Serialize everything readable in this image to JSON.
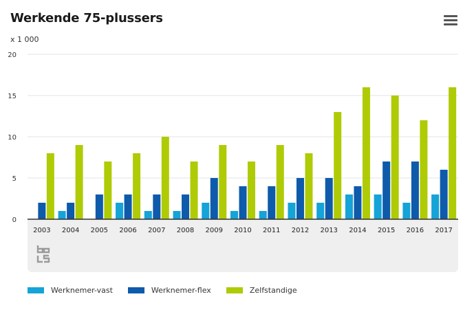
{
  "header": {
    "title": "Werkende 75-plussers",
    "unit_label": "x 1 000",
    "menu_icon": "hamburger-menu-icon"
  },
  "colors": {
    "werknemer_vast": "#15a3d8",
    "werknemer_flex": "#0e5aab",
    "zelfstandige": "#afcb05"
  },
  "chart_data": {
    "type": "bar",
    "title": "Werkende 75-plussers",
    "ylabel": "x 1 000",
    "xlabel": "",
    "ylim": [
      0,
      20
    ],
    "yticks": [
      0,
      5,
      10,
      15,
      20
    ],
    "grid": true,
    "legend_position": "bottom",
    "categories": [
      "2003",
      "2004",
      "2005",
      "2006",
      "2007",
      "2008",
      "2009",
      "2010",
      "2011",
      "2012",
      "2013",
      "2014",
      "2015",
      "2016",
      "2017"
    ],
    "series": [
      {
        "name": "Werknemer-vast",
        "color": "#15a3d8",
        "values": [
          0,
          1,
          0,
          2,
          1,
          1,
          2,
          1,
          1,
          2,
          2,
          3,
          3,
          2,
          3
        ]
      },
      {
        "name": "Werknemer-flex",
        "color": "#0e5aab",
        "values": [
          2,
          2,
          3,
          3,
          3,
          3,
          5,
          4,
          4,
          5,
          5,
          4,
          7,
          7,
          6
        ]
      },
      {
        "name": "Zelfstandige",
        "color": "#afcb05",
        "values": [
          8,
          9,
          7,
          8,
          10,
          7,
          9,
          7,
          9,
          8,
          13,
          16,
          15,
          12,
          16
        ]
      }
    ]
  }
}
